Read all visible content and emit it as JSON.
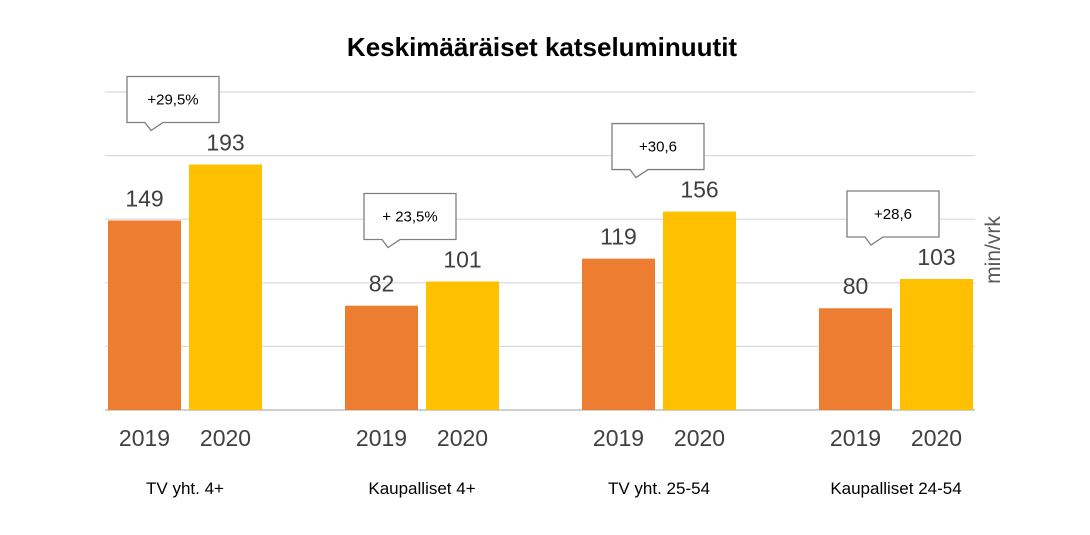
{
  "chart_data": {
    "type": "bar",
    "title": "Keskimääräiset katseluminuutit",
    "ylabel": "min/vrk",
    "ylim": [
      0,
      250
    ],
    "grid": true,
    "legend": "none",
    "groups": [
      {
        "category": "TV yht. 4+",
        "x_labels": [
          "2019",
          "2020"
        ],
        "values": [
          149,
          193
        ],
        "callout": "+29,5%"
      },
      {
        "category": "Kaupalliset 4+",
        "x_labels": [
          "2019",
          "2020"
        ],
        "values": [
          82,
          101
        ],
        "callout": "+ 23,5%"
      },
      {
        "category": "TV yht. 25-54",
        "x_labels": [
          "2019",
          "2020"
        ],
        "values": [
          119,
          156
        ],
        "callout": "+30,6"
      },
      {
        "category": "Kaupalliset 24-54",
        "x_labels": [
          "2019",
          "2020"
        ],
        "values": [
          80,
          103
        ],
        "callout": "+28,6"
      }
    ],
    "colors": {
      "2019": "#ED7D31",
      "2020": "#FFC000",
      "grid": "#D9D9D9"
    }
  }
}
